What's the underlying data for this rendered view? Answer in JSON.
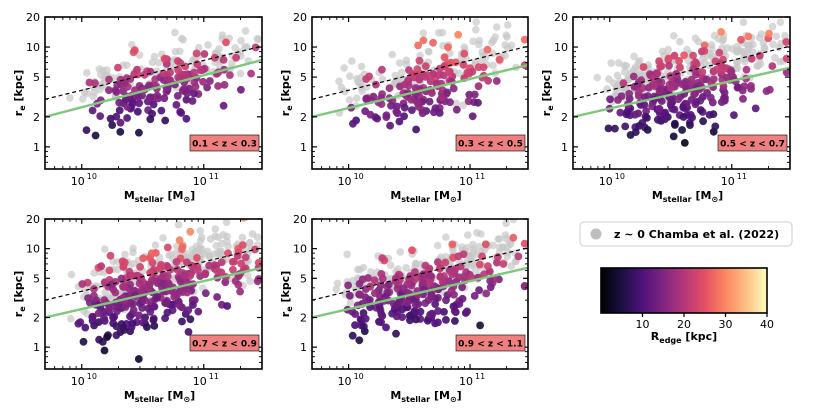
{
  "chart_data": [
    {
      "type": "scatter",
      "z_label": "0.1 < z < 0.3",
      "xlabel": "M",
      "xlabel_sub": "stellar",
      "xlabel_unit": " [M",
      "xlabel_unit_end": "]",
      "ylabel": "r",
      "ylabel_sub": "e",
      "ylabel_unit": " [kpc]",
      "xscale": "log",
      "yscale": "log",
      "xlim": [
        5000000000,
        300000000000
      ],
      "ylim": [
        0.6,
        20
      ],
      "yticks": [
        1,
        2,
        5,
        10,
        20
      ],
      "xtick_labels": [
        "10",
        "10"
      ],
      "xtick_exps": [
        "10",
        "11"
      ],
      "reference_dashed": {
        "x": [
          5000000000,
          300000000000
        ],
        "y": [
          3.0,
          10.2
        ]
      },
      "fit_green": {
        "x": [
          5000000000,
          300000000000
        ],
        "y": [
          2.0,
          7.4
        ]
      },
      "density": 1.0,
      "spread": 0.6,
      "color_level": 0.38
    },
    {
      "type": "scatter",
      "z_label": "0.3 < z < 0.5",
      "xlabel": "M",
      "xlabel_sub": "stellar",
      "xlabel_unit": " [M",
      "xlabel_unit_end": "]",
      "ylabel": "r",
      "ylabel_sub": "e",
      "ylabel_unit": " [kpc]",
      "xscale": "log",
      "yscale": "log",
      "xlim": [
        5000000000,
        300000000000
      ],
      "ylim": [
        0.6,
        20
      ],
      "yticks": [
        1,
        2,
        5,
        10,
        20
      ],
      "xtick_labels": [
        "10",
        "10"
      ],
      "xtick_exps": [
        "10",
        "11"
      ],
      "reference_dashed": {
        "x": [
          5000000000,
          300000000000
        ],
        "y": [
          3.0,
          10.2
        ]
      },
      "fit_green": {
        "x": [
          5000000000,
          300000000000
        ],
        "y": [
          2.0,
          6.6
        ]
      },
      "density": 1.0,
      "spread": 0.65,
      "color_level": 0.42
    },
    {
      "type": "scatter",
      "z_label": "0.5 < z < 0.7",
      "xlabel": "M",
      "xlabel_sub": "stellar",
      "xlabel_unit": " [M",
      "xlabel_unit_end": "]",
      "ylabel": "r",
      "ylabel_sub": "e",
      "ylabel_unit": " [kpc]",
      "xscale": "log",
      "yscale": "log",
      "xlim": [
        5000000000,
        300000000000
      ],
      "ylim": [
        0.6,
        20
      ],
      "yticks": [
        1,
        2,
        5,
        10,
        20
      ],
      "xtick_labels": [
        "10",
        "10"
      ],
      "xtick_exps": [
        "10",
        "11"
      ],
      "reference_dashed": {
        "x": [
          5000000000,
          300000000000
        ],
        "y": [
          3.0,
          10.2
        ]
      },
      "fit_green": {
        "x": [
          5000000000,
          300000000000
        ],
        "y": [
          2.0,
          6.2
        ]
      },
      "density": 1.6,
      "spread": 0.7,
      "color_level": 0.36
    },
    {
      "type": "scatter",
      "z_label": "0.7 < z < 0.9",
      "xlabel": "M",
      "xlabel_sub": "stellar",
      "xlabel_unit": " [M",
      "xlabel_unit_end": "]",
      "ylabel": "r",
      "ylabel_sub": "e",
      "ylabel_unit": " [kpc]",
      "xscale": "log",
      "yscale": "log",
      "xlim": [
        5000000000,
        300000000000
      ],
      "ylim": [
        0.6,
        20
      ],
      "yticks": [
        1,
        2,
        5,
        10,
        20
      ],
      "xtick_labels": [
        "10",
        "10"
      ],
      "xtick_exps": [
        "10",
        "11"
      ],
      "reference_dashed": {
        "x": [
          5000000000,
          300000000000
        ],
        "y": [
          3.0,
          10.2
        ]
      },
      "fit_green": {
        "x": [
          5000000000,
          300000000000
        ],
        "y": [
          2.0,
          6.4
        ]
      },
      "density": 1.9,
      "spread": 0.7,
      "color_level": 0.38
    },
    {
      "type": "scatter",
      "z_label": "0.9 < z < 1.1",
      "xlabel": "M",
      "xlabel_sub": "stellar",
      "xlabel_unit": " [M",
      "xlabel_unit_end": "]",
      "ylabel": "r",
      "ylabel_sub": "e",
      "ylabel_unit": " [kpc]",
      "xscale": "log",
      "yscale": "log",
      "xlim": [
        5000000000,
        300000000000
      ],
      "ylim": [
        0.6,
        20
      ],
      "yticks": [
        1,
        2,
        5,
        10,
        20
      ],
      "xtick_labels": [
        "10",
        "10"
      ],
      "xtick_exps": [
        "10",
        "11"
      ],
      "reference_dashed": {
        "x": [
          5000000000,
          300000000000
        ],
        "y": [
          3.0,
          10.2
        ]
      },
      "fit_green": {
        "x": [
          5000000000,
          300000000000
        ],
        "y": [
          2.0,
          6.4
        ]
      },
      "density": 1.5,
      "spread": 0.7,
      "color_level": 0.36
    }
  ],
  "legend": {
    "marker_color": "#bdbdbd",
    "text": "z ~ 0 Chamba et al. (2022)",
    "location": "right"
  },
  "colorbar": {
    "label": "R",
    "label_sub": "edge",
    "label_unit": " [kpc]",
    "vmin": 0,
    "vmax": 40,
    "ticks": [
      10,
      20,
      30,
      40
    ],
    "colormap": "magma"
  },
  "colors": {
    "dashed_line": "#000000",
    "fit_line": "#7dc87a",
    "z_box_fill": "#f08080",
    "reference_points": "#c8c8c8"
  }
}
